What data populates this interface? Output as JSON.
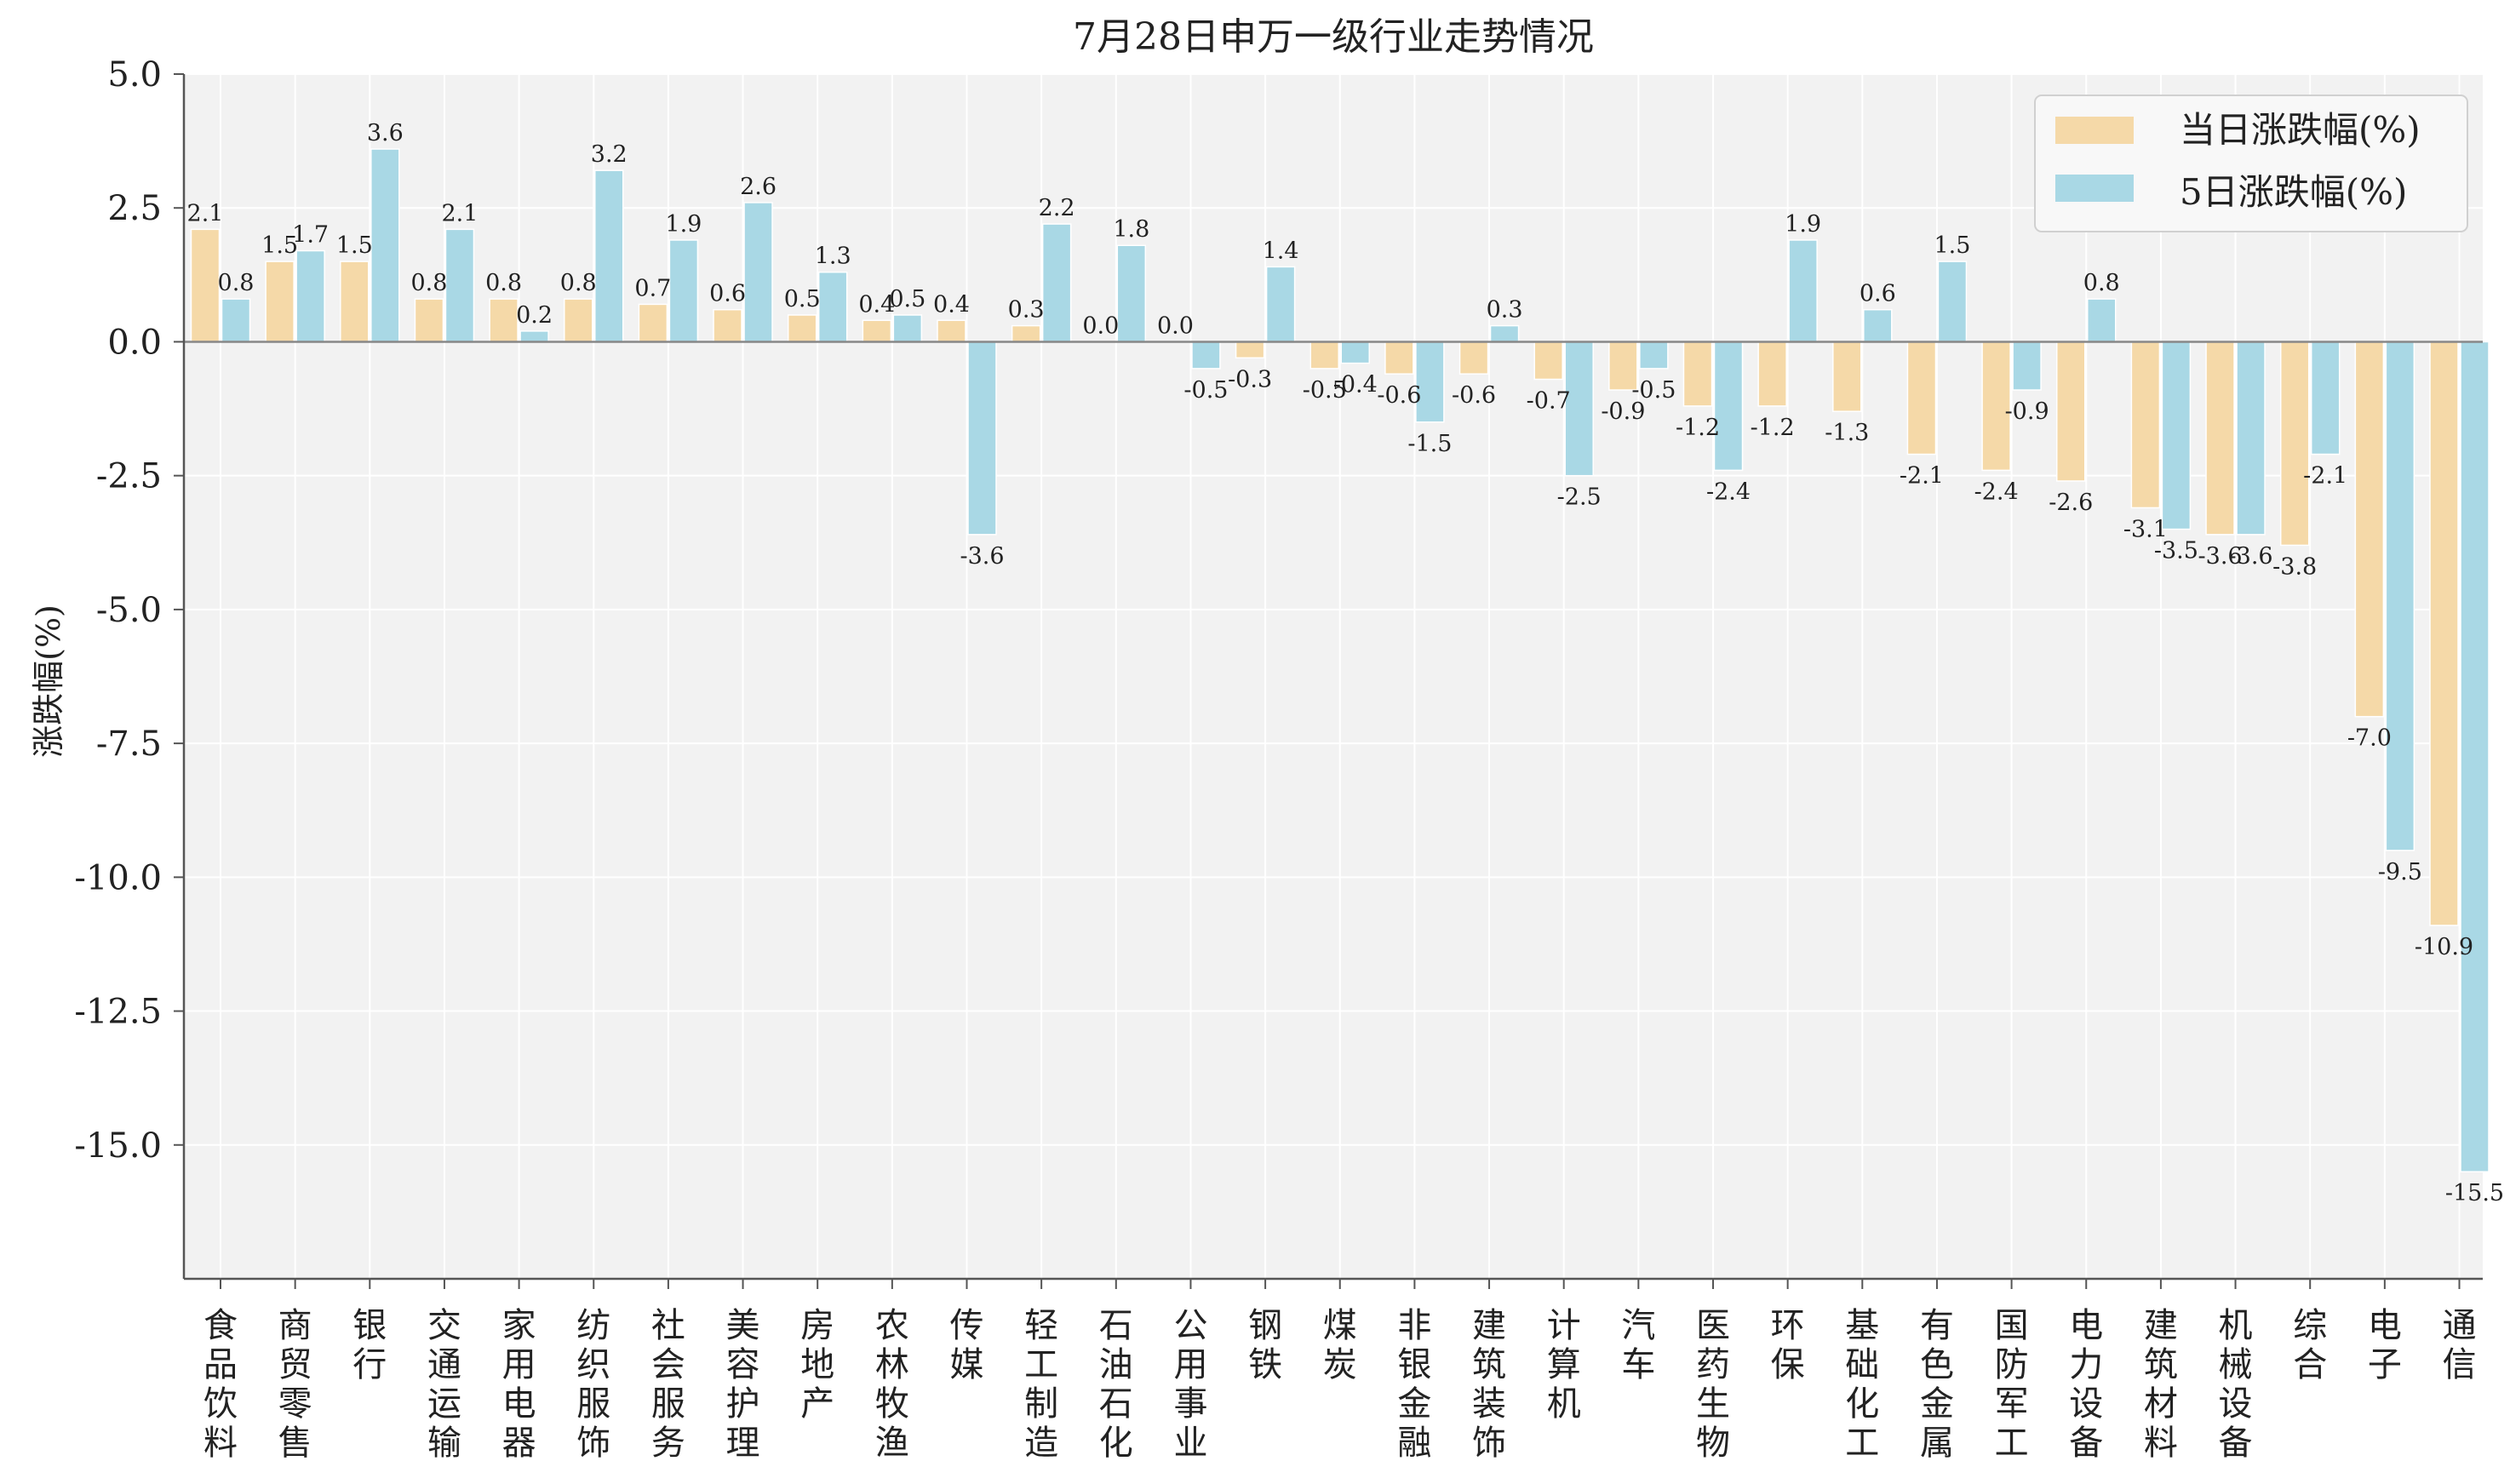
{
  "chart_data": {
    "type": "bar",
    "title": "7月28日申万一级行业走势情况",
    "xlabel": "",
    "ylabel": "涨跌幅(%)",
    "ylim": [
      -17.5,
      5.0
    ],
    "yticks": [
      5.0,
      2.5,
      0.0,
      -2.5,
      -5.0,
      -7.5,
      -10.0,
      -12.5,
      -15.0
    ],
    "ytick_labels": [
      "5.0",
      "2.5",
      "0.0",
      "-2.5",
      "-5.0",
      "-7.5",
      "-10.0",
      "-12.5",
      "-15.0"
    ],
    "grid": true,
    "legend_position": "top-right",
    "colors": {
      "plot_background": "#f2f2f2",
      "grid": "#ffffff",
      "axis": "#555555"
    },
    "categories": [
      "食品饮料",
      "商贸零售",
      "银行",
      "交通运输",
      "家用电器",
      "纺织服饰",
      "社会服务",
      "美容护理",
      "房地产",
      "农林牧渔",
      "传媒",
      "轻工制造",
      "石油石化",
      "公用事业",
      "钢铁",
      "煤炭",
      "非银金融",
      "建筑装饰",
      "计算机",
      "汽车",
      "医药生物",
      "环保",
      "基础化工",
      "有色金属",
      "国防军工",
      "电力设备",
      "建筑材料",
      "机械设备",
      "综合",
      "电子",
      "通信"
    ],
    "series": [
      {
        "name": "当日涨跌幅(%)",
        "color": "#f5d9a8",
        "values": [
          2.1,
          1.5,
          1.5,
          0.8,
          0.8,
          0.8,
          0.7,
          0.6,
          0.5,
          0.4,
          0.4,
          0.3,
          0.0,
          0.0,
          -0.3,
          -0.5,
          -0.6,
          -0.6,
          -0.7,
          -0.9,
          -1.2,
          -1.2,
          -1.3,
          -2.1,
          -2.4,
          -2.6,
          -3.1,
          -3.6,
          -3.8,
          -7.0,
          -10.9
        ],
        "labels": [
          "2.1",
          "1.5",
          "1.5",
          "0.8",
          "0.8",
          "0.8",
          "0.7",
          "0.6",
          "0.5",
          "0.4",
          "0.4",
          "0.3",
          "0.0",
          "0.0",
          "-0.3",
          "-0.5",
          "-0.6",
          "-0.6",
          "-0.7",
          "-0.9",
          "-1.2",
          "-1.2",
          "-1.3",
          "-2.1",
          "-2.4",
          "-2.6",
          "-3.1",
          "-3.6",
          "-3.8",
          "-7.0",
          "-10.9"
        ]
      },
      {
        "name": "5日涨跌幅(%)",
        "color": "#a9d8e5",
        "values": [
          0.8,
          1.7,
          3.6,
          2.1,
          0.2,
          3.2,
          1.9,
          2.6,
          1.3,
          0.5,
          -3.6,
          2.2,
          1.8,
          -0.5,
          1.4,
          -0.4,
          -1.5,
          0.3,
          -2.5,
          -0.5,
          -2.4,
          1.9,
          0.6,
          1.5,
          -0.9,
          0.8,
          -3.5,
          -3.6,
          -2.1,
          -9.5,
          -15.5
        ],
        "labels": [
          "0.8",
          "1.7",
          "3.6",
          "2.1",
          "0.2",
          "3.2",
          "1.9",
          "2.6",
          "1.3",
          "0.5",
          "-3.6",
          "2.2",
          "1.8",
          "-0.5",
          "1.4",
          "-0.4",
          "-1.5",
          "0.3",
          "-2.5",
          "-0.5",
          "-2.4",
          "1.9",
          "0.6",
          "1.5",
          "-0.9",
          "0.8",
          "-3.5",
          "-3.6",
          "-2.1",
          "-9.5",
          "-15.5"
        ]
      }
    ]
  }
}
